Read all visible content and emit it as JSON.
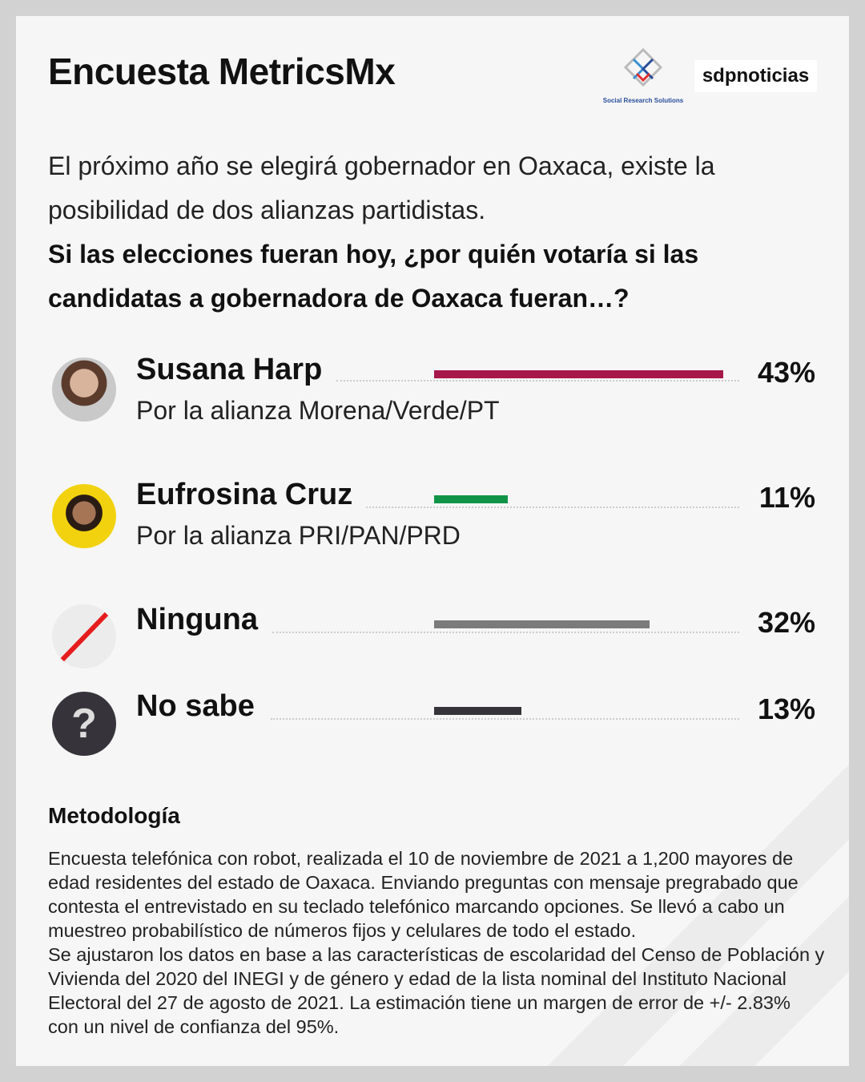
{
  "header": {
    "title": "Encuesta MetricsMx",
    "logo_srs": "Social Research Solutions",
    "logo_sdp": "sdpnoticias"
  },
  "question": {
    "intro": "El próximo año se elegirá gobernador en Oaxaca, existe la posibilidad de dos alianzas partidistas.",
    "prompt": "Si las elecciones fueran hoy, ¿por quién votaría si las candidatas a gobernadora de Oaxaca fueran…?"
  },
  "chart_data": {
    "type": "bar",
    "categories": [
      "Susana Harp",
      "Eufrosina Cruz",
      "Ninguna",
      "No sabe"
    ],
    "subtitles": [
      "Por la alianza Morena/Verde/PT",
      "Por la alianza PRI/PAN/PRD",
      "",
      ""
    ],
    "values": [
      43,
      11,
      32,
      13
    ],
    "labels": [
      "43%",
      "11%",
      "32%",
      "13%"
    ],
    "colors": [
      "#a8174a",
      "#109447",
      "#7b7b7b",
      "#36343a"
    ]
  },
  "methodology": {
    "title": "Metodología",
    "text": "Encuesta telefónica con robot, realizada el 10 de noviembre de 2021 a 1,200 mayores de edad residentes del estado de Oaxaca. Enviando preguntas con mensaje pregrabado que contesta el entrevistado en su teclado telefónico marcando opciones. Se llevó a cabo un muestreo probabilístico de números fijos y celulares de todo el estado.",
    "text2": "Se ajustaron los datos en base a las características de escolaridad del Censo de Población y Vivienda del 2020 del INEGI y de género y edad de la lista nominal del Instituto Nacional Electoral del 27 de agosto de 2021. La estimación tiene un margen de error de +/- 2.83% con un nivel de confianza del 95%."
  }
}
